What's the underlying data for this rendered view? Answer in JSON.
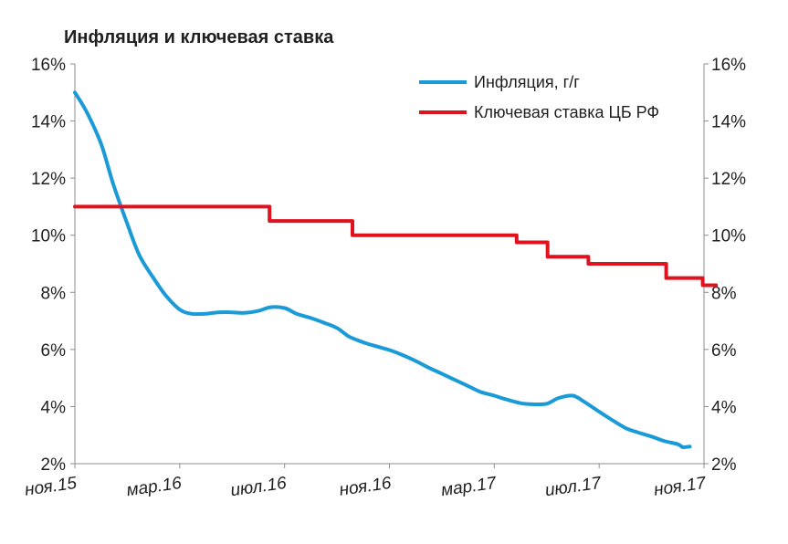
{
  "chart_data": {
    "type": "line",
    "title": "Инфляция и ключевая ставка",
    "x_tick_labels": [
      "ноя.15",
      "мар.16",
      "июл.16",
      "ноя.16",
      "мар.17",
      "июл.17",
      "ноя.17"
    ],
    "x_range_months": [
      "2015-11",
      "2017-11"
    ],
    "y_left": {
      "min": 2,
      "max": 16,
      "step": 2,
      "tick_labels": [
        "2%",
        "4%",
        "6%",
        "8%",
        "10%",
        "12%",
        "14%",
        "16%"
      ]
    },
    "y_right": {
      "min": 2,
      "max": 16,
      "step": 2,
      "tick_labels": [
        "2%",
        "4%",
        "6%",
        "8%",
        "10%",
        "12%",
        "14%",
        "16%"
      ]
    },
    "legend_position": "top-right",
    "series": [
      {
        "name": "Инфляция, г/г",
        "color": "#1a9ad6",
        "style": "smooth",
        "points": [
          [
            "2015-11-01",
            15.0
          ],
          [
            "2015-11-15",
            14.3
          ],
          [
            "2015-12-01",
            13.2
          ],
          [
            "2015-12-15",
            11.8
          ],
          [
            "2016-01-01",
            10.4
          ],
          [
            "2016-01-15",
            9.3
          ],
          [
            "2016-02-01",
            8.5
          ],
          [
            "2016-02-15",
            7.9
          ],
          [
            "2016-03-01",
            7.4
          ],
          [
            "2016-03-15",
            7.25
          ],
          [
            "2016-04-01",
            7.25
          ],
          [
            "2016-04-15",
            7.3
          ],
          [
            "2016-05-01",
            7.3
          ],
          [
            "2016-05-15",
            7.28
          ],
          [
            "2016-06-01",
            7.35
          ],
          [
            "2016-06-15",
            7.48
          ],
          [
            "2016-07-01",
            7.45
          ],
          [
            "2016-07-15",
            7.25
          ],
          [
            "2016-08-01",
            7.1
          ],
          [
            "2016-08-15",
            6.95
          ],
          [
            "2016-09-01",
            6.75
          ],
          [
            "2016-09-15",
            6.45
          ],
          [
            "2016-10-01",
            6.25
          ],
          [
            "2016-10-15",
            6.12
          ],
          [
            "2016-11-01",
            5.98
          ],
          [
            "2016-11-15",
            5.82
          ],
          [
            "2016-12-01",
            5.6
          ],
          [
            "2016-12-15",
            5.38
          ],
          [
            "2017-01-01",
            5.15
          ],
          [
            "2017-01-15",
            4.95
          ],
          [
            "2017-02-01",
            4.72
          ],
          [
            "2017-02-15",
            4.52
          ],
          [
            "2017-03-01",
            4.38
          ],
          [
            "2017-03-15",
            4.25
          ],
          [
            "2017-04-01",
            4.12
          ],
          [
            "2017-04-15",
            4.08
          ],
          [
            "2017-05-01",
            4.1
          ],
          [
            "2017-05-15",
            4.3
          ],
          [
            "2017-06-01",
            4.38
          ],
          [
            "2017-06-15",
            4.15
          ],
          [
            "2017-07-01",
            3.82
          ],
          [
            "2017-07-15",
            3.55
          ],
          [
            "2017-08-01",
            3.25
          ],
          [
            "2017-08-15",
            3.1
          ],
          [
            "2017-09-01",
            2.95
          ],
          [
            "2017-09-15",
            2.8
          ],
          [
            "2017-10-01",
            2.68
          ],
          [
            "2017-10-07",
            2.58
          ],
          [
            "2017-10-15",
            2.6
          ]
        ]
      },
      {
        "name": "Ключевая ставка ЦБ РФ",
        "color": "#e0121e",
        "style": "step",
        "points": [
          [
            "2015-11-01",
            11.0
          ],
          [
            "2016-06-14",
            10.5
          ],
          [
            "2016-09-19",
            10.0
          ],
          [
            "2017-03-27",
            9.75
          ],
          [
            "2017-05-02",
            9.25
          ],
          [
            "2017-06-19",
            9.0
          ],
          [
            "2017-09-18",
            8.5
          ],
          [
            "2017-10-30",
            8.25
          ],
          [
            "2017-11-15",
            8.25
          ]
        ]
      }
    ]
  }
}
